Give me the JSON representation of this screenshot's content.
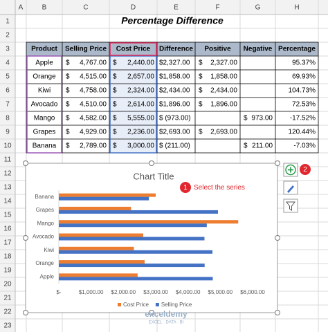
{
  "sheet": {
    "columns": [
      "A",
      "B",
      "C",
      "D",
      "E",
      "F",
      "G",
      "H"
    ],
    "rows": [
      "1",
      "2",
      "3",
      "4",
      "5",
      "6",
      "7",
      "8",
      "9",
      "10",
      "11",
      "12",
      "13",
      "14",
      "15",
      "16",
      "17",
      "18",
      "19",
      "20",
      "21",
      "22",
      "23"
    ],
    "title": "Percentage Difference",
    "table": {
      "header": [
        "Product",
        "Selling Price",
        "Cost Price",
        "Difference",
        "Positive",
        "Negative",
        "Percentage"
      ],
      "rows": [
        [
          "Apple",
          {
            "cur": "$",
            "amt": "4,767.00"
          },
          {
            "cur": "$",
            "amt": "2,440.00"
          },
          "$2,327.00",
          {
            "cur": "$",
            "amt": "2,327.00"
          },
          null,
          "95.37%"
        ],
        [
          "Orange",
          {
            "cur": "$",
            "amt": "4,515.00"
          },
          {
            "cur": "$",
            "amt": "2,657.00"
          },
          "$1,858.00",
          {
            "cur": "$",
            "amt": "1,858.00"
          },
          null,
          "69.93%"
        ],
        [
          "Kiwi",
          {
            "cur": "$",
            "amt": "4,758.00"
          },
          {
            "cur": "$",
            "amt": "2,324.00"
          },
          "$2,434.00",
          {
            "cur": "$",
            "amt": "2,434.00"
          },
          null,
          "104.73%"
        ],
        [
          "Avocado",
          {
            "cur": "$",
            "amt": "4,510.00"
          },
          {
            "cur": "$",
            "amt": "2,614.00"
          },
          "$1,896.00",
          {
            "cur": "$",
            "amt": "1,896.00"
          },
          null,
          "72.53%"
        ],
        [
          "Mango",
          {
            "cur": "$",
            "amt": "4,582.00"
          },
          {
            "cur": "$",
            "amt": "5,555.00"
          },
          "$ (973.00)",
          null,
          {
            "cur": "$",
            "amt": "973.00"
          },
          "-17.52%"
        ],
        [
          "Grapes",
          {
            "cur": "$",
            "amt": "4,929.00"
          },
          {
            "cur": "$",
            "amt": "2,236.00"
          },
          "$2,693.00",
          {
            "cur": "$",
            "amt": "2,693.00"
          },
          null,
          "120.44%"
        ],
        [
          "Banana",
          {
            "cur": "$",
            "amt": "2,789.00"
          },
          {
            "cur": "$",
            "amt": "3,000.00"
          },
          "$ (211.00)",
          null,
          {
            "cur": "$",
            "amt": "211.00"
          },
          "-7.03%"
        ]
      ]
    }
  },
  "chart_data": {
    "type": "barh",
    "title": "Chart Title",
    "categories": [
      "Apple",
      "Orange",
      "Kiwi",
      "Avocado",
      "Mango",
      "Grapes",
      "Banana"
    ],
    "series": [
      {
        "name": "Cost Price",
        "color": "#ed7d31",
        "values": [
          2440,
          2657,
          2324,
          2614,
          5555,
          2236,
          3000
        ]
      },
      {
        "name": "Selling Price",
        "color": "#4472c4",
        "values": [
          4767,
          4515,
          4758,
          4510,
          4582,
          4929,
          2789
        ]
      }
    ],
    "xlim": [
      0,
      6000
    ],
    "xticks": [
      {
        "value": 0,
        "label": "$-"
      },
      {
        "value": 1000,
        "label": "$1,000.00"
      },
      {
        "value": 2000,
        "label": "$2,000.00"
      },
      {
        "value": 3000,
        "label": "$3,000.00"
      },
      {
        "value": 4000,
        "label": "$4,000.00"
      },
      {
        "value": 5000,
        "label": "$5,000.00"
      },
      {
        "value": 6000,
        "label": "$6,000.00"
      }
    ],
    "grid": false,
    "legend": "bottom"
  },
  "annotations": {
    "step1": "1",
    "step1_text": "Select the series",
    "step2": "2"
  },
  "watermark": {
    "name": "exceldemy",
    "tagline": "EXCEL · DATA · BI"
  }
}
